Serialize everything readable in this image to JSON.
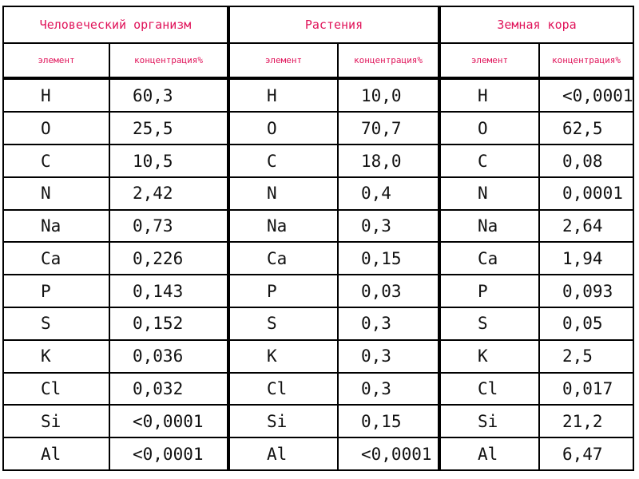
{
  "groups": [
    {
      "title": "Человеческий организм"
    },
    {
      "title": "Растения"
    },
    {
      "title": "Земная кора"
    }
  ],
  "sub_headers": {
    "element": "элемент",
    "concentration": "концентрация%"
  },
  "rows": [
    {
      "human_el": "H",
      "human_val": "60,3",
      "plant_el": "H",
      "plant_val": "10,0",
      "crust_el": "H",
      "crust_val": "<0,0001"
    },
    {
      "human_el": "O",
      "human_val": "25,5",
      "plant_el": "O",
      "plant_val": "70,7",
      "crust_el": "O",
      "crust_val": "62,5"
    },
    {
      "human_el": "C",
      "human_val": "10,5",
      "plant_el": "C",
      "plant_val": "18,0",
      "crust_el": "C",
      "crust_val": "0,08"
    },
    {
      "human_el": "N",
      "human_val": "2,42",
      "plant_el": "N",
      "plant_val": "0,4",
      "crust_el": "N",
      "crust_val": "0,0001"
    },
    {
      "human_el": "Na",
      "human_val": "0,73",
      "plant_el": "Na",
      "plant_val": "0,3",
      "crust_el": "Na",
      "crust_val": "2,64"
    },
    {
      "human_el": "Ca",
      "human_val": "0,226",
      "plant_el": "Ca",
      "plant_val": "0,15",
      "crust_el": "Ca",
      "crust_val": "1,94"
    },
    {
      "human_el": "P",
      "human_val": "0,143",
      "plant_el": "P",
      "plant_val": "0,03",
      "crust_el": "P",
      "crust_val": "0,093"
    },
    {
      "human_el": "S",
      "human_val": "0,152",
      "plant_el": "S",
      "plant_val": "0,3",
      "crust_el": "S",
      "crust_val": "0,05"
    },
    {
      "human_el": "K",
      "human_val": "0,036",
      "plant_el": "K",
      "plant_val": "0,3",
      "crust_el": "K",
      "crust_val": "2,5"
    },
    {
      "human_el": "Cl",
      "human_val": "0,032",
      "plant_el": "Cl",
      "plant_val": "0,3",
      "crust_el": "Cl",
      "crust_val": "0,017"
    },
    {
      "human_el": "Si",
      "human_val": "<0,0001",
      "plant_el": "Si",
      "plant_val": "0,15",
      "crust_el": "Si",
      "crust_val": "21,2"
    },
    {
      "human_el": "Al",
      "human_val": "<0,0001",
      "plant_el": "Al",
      "plant_val": "<0,0001",
      "crust_el": "Al",
      "crust_val": "6,47"
    }
  ],
  "colors": {
    "header_text": "#e0145a",
    "border": "#000000"
  }
}
